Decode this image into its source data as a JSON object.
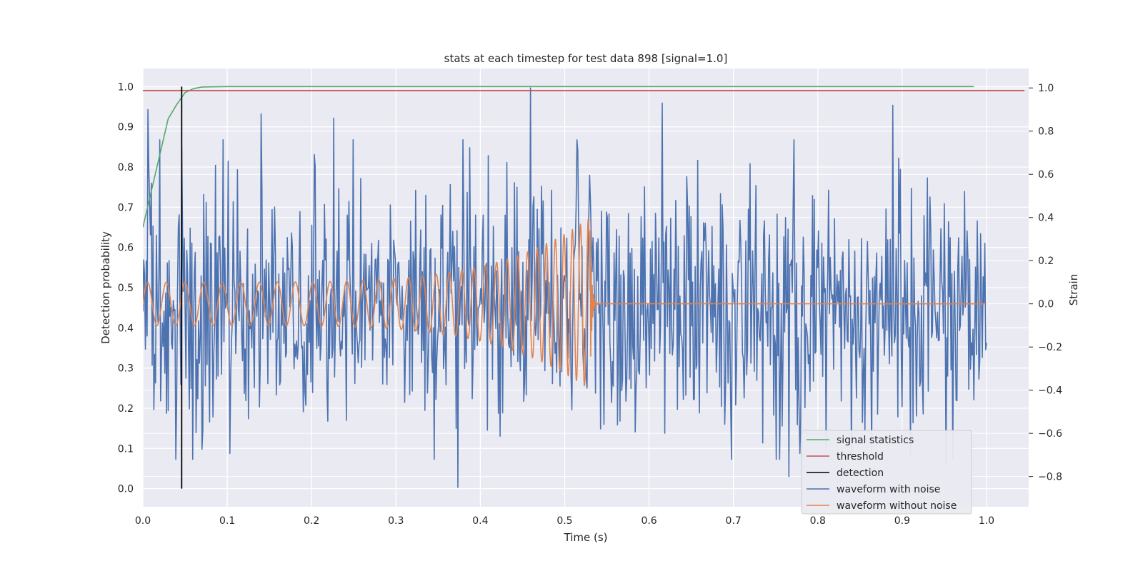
{
  "chart_data": {
    "type": "line",
    "title": "stats at each timestep for test data 898 [signal=1.0]",
    "xlabel": "Time (s)",
    "ylabel_left": "Detection probability",
    "ylabel_right": "Strain",
    "xlim": [
      0.0,
      1.05
    ],
    "ylim_left": [
      -0.045,
      1.045
    ],
    "ylim_right": [
      -0.94,
      1.09
    ],
    "x_ticks": [
      "0.0",
      "0.1",
      "0.2",
      "0.3",
      "0.4",
      "0.5",
      "0.6",
      "0.7",
      "0.8",
      "0.9",
      "1.0"
    ],
    "x_tick_values": [
      0.0,
      0.1,
      0.2,
      0.3,
      0.4,
      0.5,
      0.6,
      0.7,
      0.8,
      0.9,
      1.0
    ],
    "y_left_ticks": [
      "0.0",
      "0.1",
      "0.2",
      "0.3",
      "0.4",
      "0.5",
      "0.6",
      "0.7",
      "0.8",
      "0.9",
      "1.0"
    ],
    "y_left_tick_values": [
      0.0,
      0.1,
      0.2,
      0.3,
      0.4,
      0.5,
      0.6,
      0.7,
      0.8,
      0.9,
      1.0
    ],
    "y_right_ticks": [
      "−0.8",
      "−0.6",
      "−0.4",
      "−0.2",
      "0.0",
      "0.2",
      "0.4",
      "0.6",
      "0.8",
      "1.0"
    ],
    "y_right_tick_values": [
      -0.8,
      -0.6,
      -0.4,
      -0.2,
      0.0,
      0.2,
      0.4,
      0.6,
      0.8,
      1.0
    ],
    "grid": true,
    "legend_position": "lower-right",
    "series": [
      {
        "name": "signal statistics",
        "axis": "left",
        "color": "#55a868",
        "x": [
          0.0,
          0.01,
          0.02,
          0.03,
          0.04,
          0.05,
          0.06,
          0.07,
          0.1,
          0.2,
          0.4,
          0.6,
          0.8,
          0.985
        ],
        "values": [
          0.65,
          0.74,
          0.83,
          0.92,
          0.955,
          0.985,
          0.995,
          0.999,
          1.0,
          1.0,
          1.0,
          1.0,
          1.0,
          1.0
        ]
      },
      {
        "name": "threshold",
        "axis": "left",
        "color": "#c44e52",
        "x": [
          0.0,
          1.045
        ],
        "values": [
          0.99,
          0.99
        ]
      },
      {
        "name": "detection",
        "axis": "left",
        "color": "#000000",
        "x": [
          0.046,
          0.046
        ],
        "values": [
          0.0,
          1.0
        ]
      },
      {
        "name": "waveform with noise",
        "axis": "right",
        "color": "#4c72b0",
        "generator": {
          "x_start": 0.0,
          "x_end": 1.0,
          "points": 1000,
          "amplitude": 0.28,
          "peaks": [
            {
              "x": 0.006,
              "y": 0.9
            },
            {
              "x": 0.14,
              "y": 0.88
            },
            {
              "x": 0.226,
              "y": 0.86
            },
            {
              "x": 0.373,
              "y": -0.85
            },
            {
              "x": 0.459,
              "y": 1.0
            },
            {
              "x": 0.616,
              "y": 0.93
            },
            {
              "x": 0.766,
              "y": -0.8
            },
            {
              "x": 0.889,
              "y": 0.92
            },
            {
              "x": 0.952,
              "y": -0.75
            }
          ]
        }
      },
      {
        "name": "waveform without noise",
        "axis": "right",
        "color": "#dd8452",
        "generator": {
          "x_start": 0.0,
          "x_end": 1.0,
          "merger_x": 0.53,
          "start_frequency": 45,
          "end_frequency": 110,
          "start_amplitude": 0.1,
          "end_amplitude": 0.4,
          "post_merger_value": 0.0
        }
      }
    ]
  }
}
